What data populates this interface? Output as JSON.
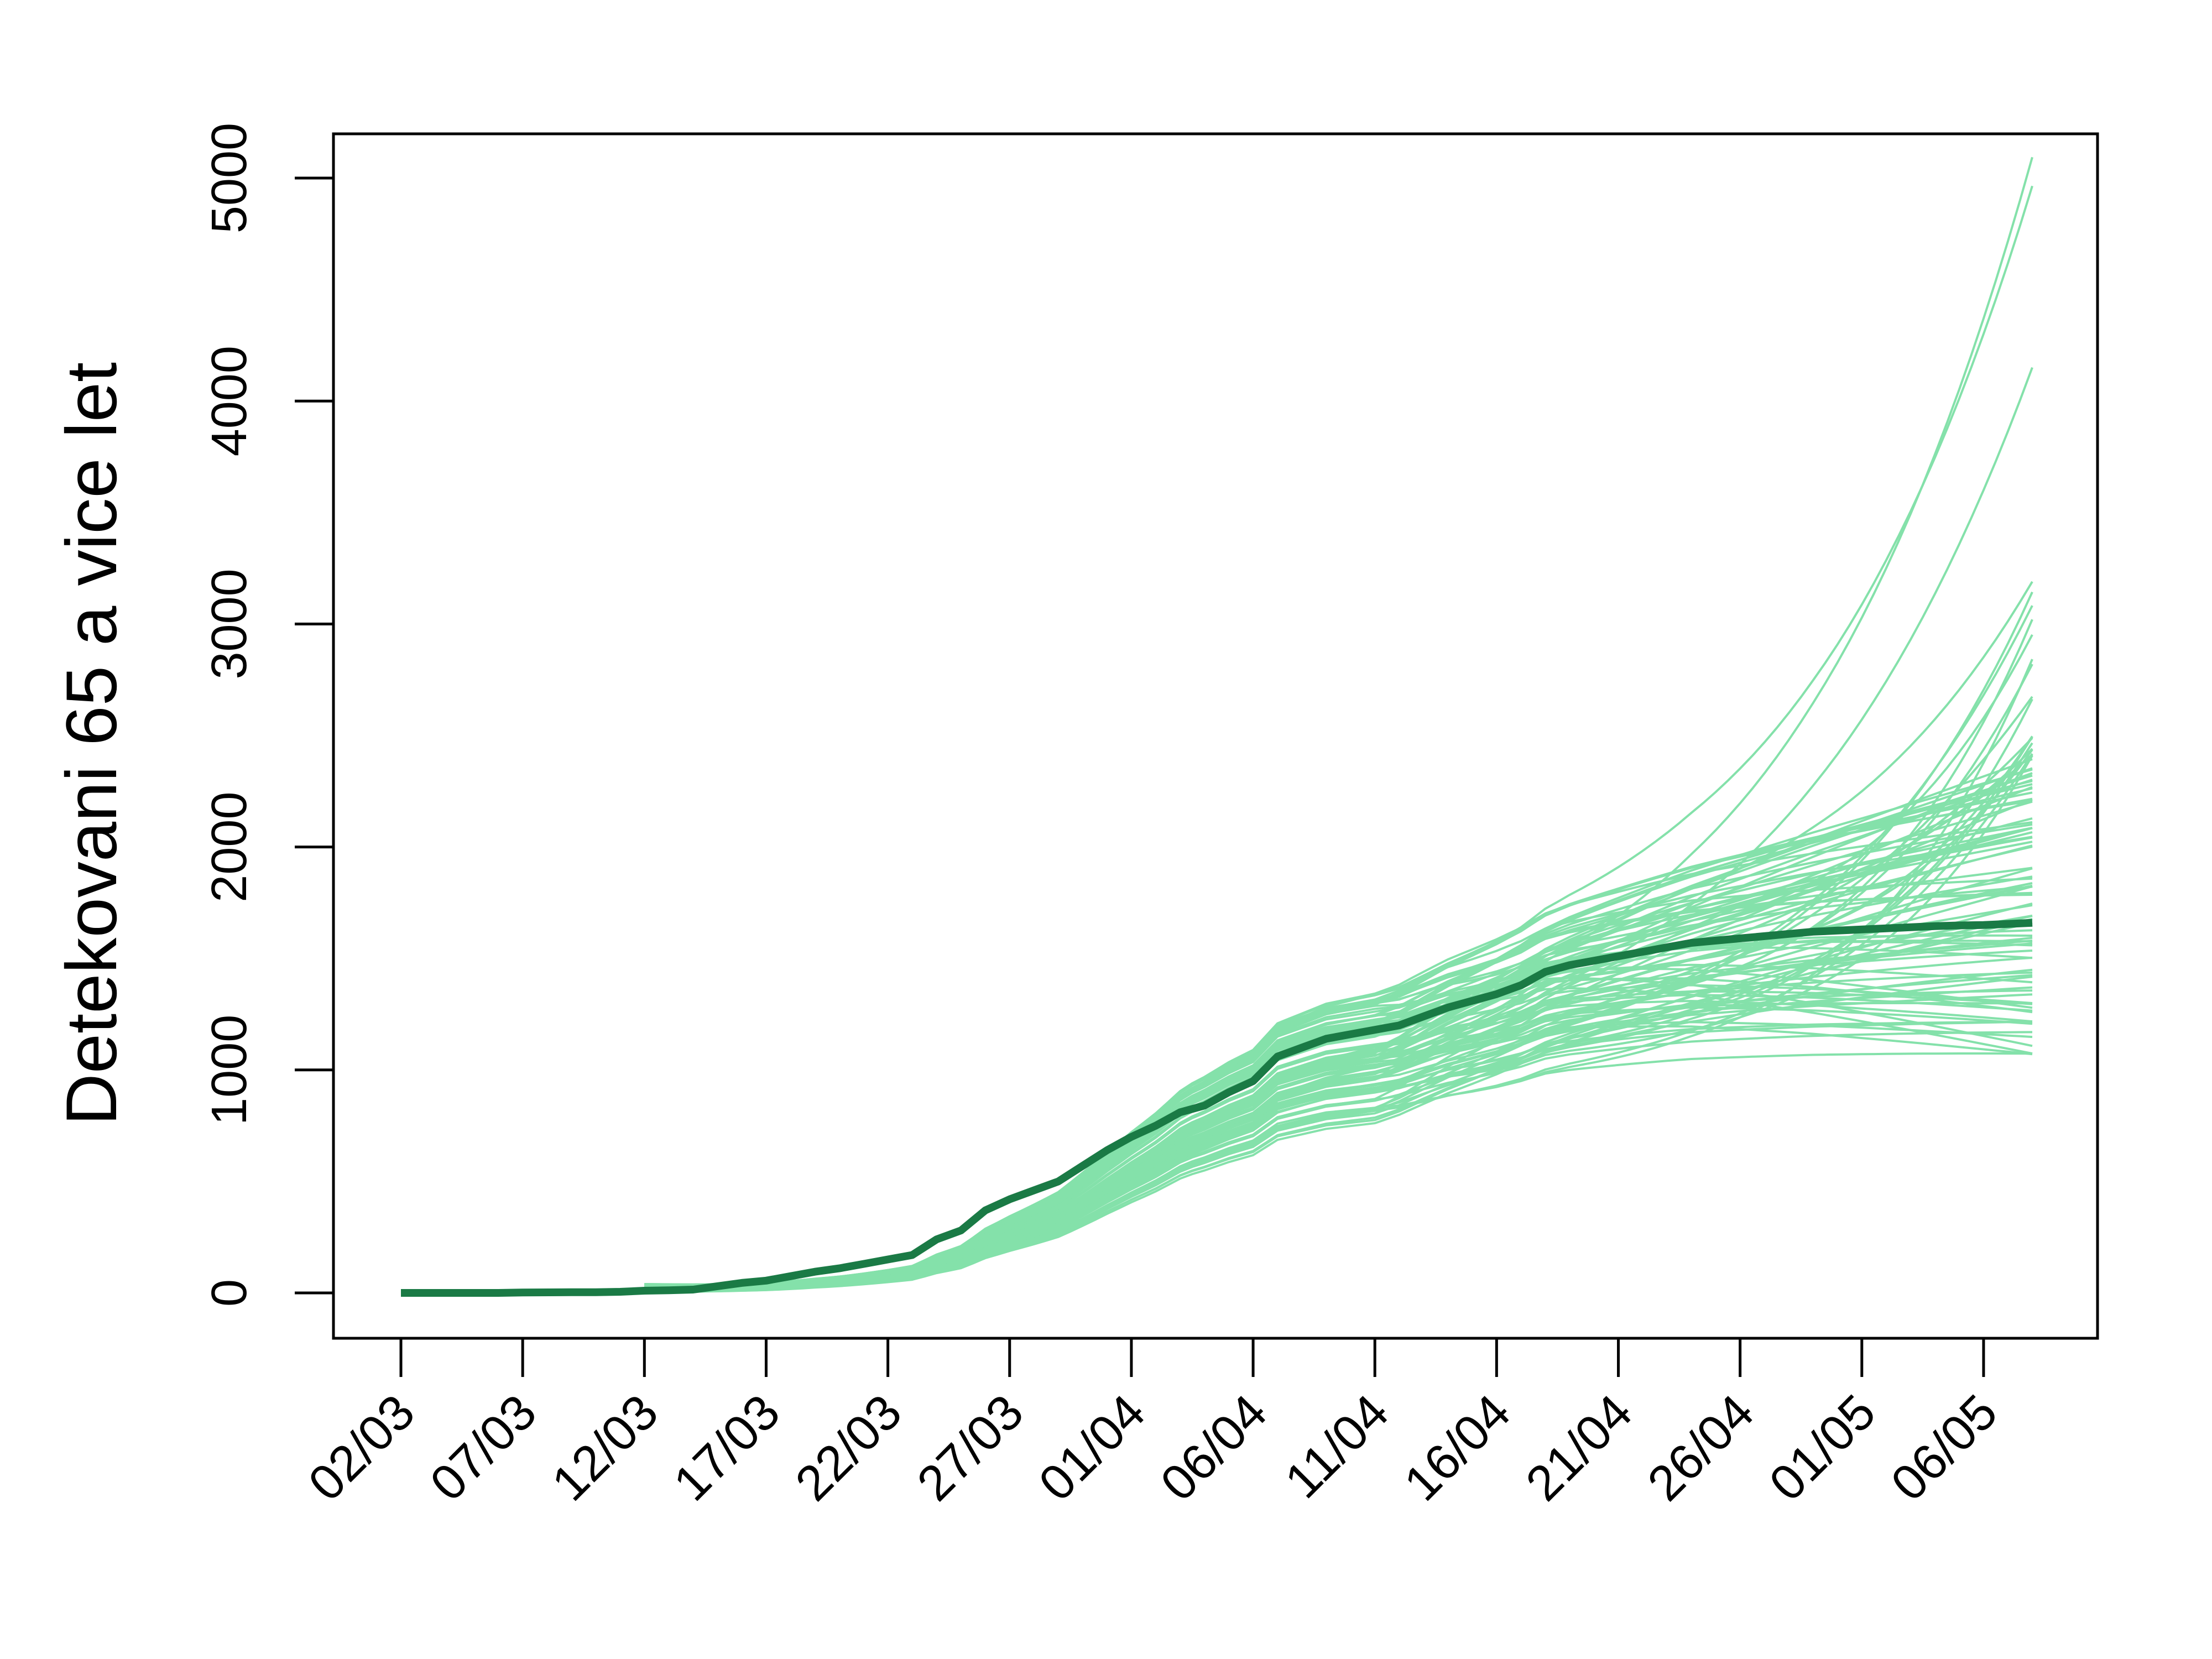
{
  "chart_data": {
    "type": "line",
    "ylabel": "Detekovani 65 a vice let",
    "xlabel": "",
    "title": "",
    "ylim": [
      -200,
      5200
    ],
    "y_ticks": [
      0,
      1000,
      2000,
      3000,
      4000,
      5000
    ],
    "x_tick_labels": [
      "02/03",
      "07/03",
      "12/03",
      "17/03",
      "22/03",
      "27/03",
      "01/04",
      "06/04",
      "11/04",
      "16/04",
      "21/04",
      "26/04",
      "01/05",
      "06/05"
    ],
    "x_range_days": [
      0,
      67
    ],
    "grid": false,
    "legend": "none",
    "colors": {
      "simulations": "#84E1AA",
      "observed": "#1A7A45"
    },
    "observed": {
      "x_days": [
        0,
        2,
        4,
        5,
        7,
        8,
        9,
        10,
        11,
        12,
        13,
        14,
        15,
        16,
        17,
        18,
        19,
        20,
        21,
        22,
        23,
        24,
        25,
        26,
        27,
        28,
        29,
        30,
        31,
        32,
        33,
        34,
        35,
        36,
        37,
        38,
        39,
        40,
        41,
        42,
        43,
        44,
        45,
        46,
        47,
        48,
        49,
        50,
        51,
        52,
        53,
        54,
        55,
        56,
        57,
        58,
        59,
        60,
        61,
        62,
        63,
        64,
        65,
        66,
        67
      ],
      "values": [
        0,
        0,
        0,
        2,
        3,
        3,
        5,
        10,
        12,
        15,
        30,
        45,
        55,
        75,
        95,
        110,
        130,
        150,
        170,
        240,
        280,
        370,
        420,
        460,
        500,
        570,
        640,
        700,
        750,
        810,
        840,
        900,
        950,
        1060,
        1100,
        1140,
        1160,
        1180,
        1200,
        1240,
        1280,
        1310,
        1340,
        1380,
        1440,
        1470,
        1490,
        1510,
        1530,
        1550,
        1570,
        1580,
        1590,
        1600,
        1610,
        1620,
        1625,
        1630,
        1635,
        1640,
        1645,
        1648,
        1650,
        1655,
        1660
      ]
    },
    "simulations": {
      "count": 100,
      "start_day": 10,
      "end_day": 67,
      "start_value_range": [
        5,
        40
      ],
      "end_value_range": [
        1060,
        5200
      ]
    }
  }
}
